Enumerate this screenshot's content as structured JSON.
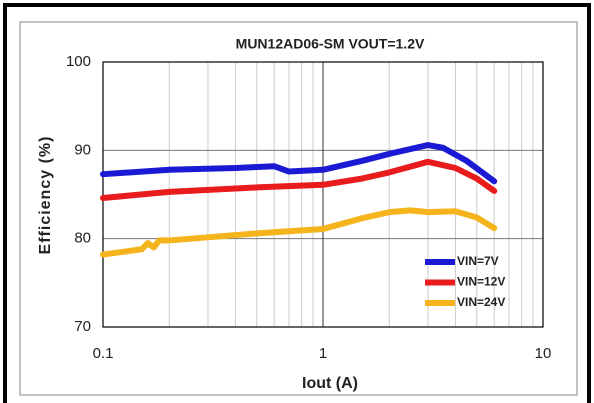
{
  "chart_data": {
    "type": "line",
    "title": "MUN12AD06-SM  VOUT=1.2V",
    "xlabel": "Iout (A)",
    "ylabel": "Efficiency (%)",
    "xscale": "log",
    "xlim": [
      0.1,
      10
    ],
    "xticks": [
      0.1,
      1,
      10
    ],
    "xminor": [
      0.2,
      0.3,
      0.4,
      0.5,
      0.6,
      0.7,
      0.8,
      0.9,
      2,
      3,
      4,
      5,
      6,
      7,
      8,
      9
    ],
    "ylim": [
      70,
      100
    ],
    "yticks": [
      70,
      80,
      90,
      100
    ],
    "grid": true,
    "legend": "lower right",
    "series": [
      {
        "name": "VIN=7V",
        "color": "#1a1ad4",
        "x": [
          0.1,
          0.2,
          0.4,
          0.6,
          0.7,
          1,
          1.5,
          2,
          3,
          3.5,
          4.5,
          6
        ],
        "values": [
          87.3,
          87.8,
          88,
          88.2,
          87.6,
          87.8,
          88.8,
          89.6,
          90.6,
          90.3,
          88.8,
          86.5
        ]
      },
      {
        "name": "VIN=12V",
        "color": "#e81c1c",
        "x": [
          0.1,
          0.2,
          0.5,
          1,
          1.5,
          2,
          3,
          4,
          5,
          6
        ],
        "values": [
          84.6,
          85.3,
          85.8,
          86.1,
          86.8,
          87.5,
          88.7,
          88,
          86.8,
          85.4
        ]
      },
      {
        "name": "VIN=24V",
        "color": "#f5b41c",
        "x": [
          0.1,
          0.15,
          0.16,
          0.17,
          0.18,
          0.2,
          0.5,
          1,
          1.5,
          2,
          2.5,
          3,
          4,
          5,
          6
        ],
        "values": [
          78.2,
          78.8,
          79.5,
          79,
          79.8,
          79.8,
          80.6,
          81.1,
          82.3,
          83,
          83.2,
          83,
          83.1,
          82.4,
          81.2
        ]
      }
    ]
  }
}
